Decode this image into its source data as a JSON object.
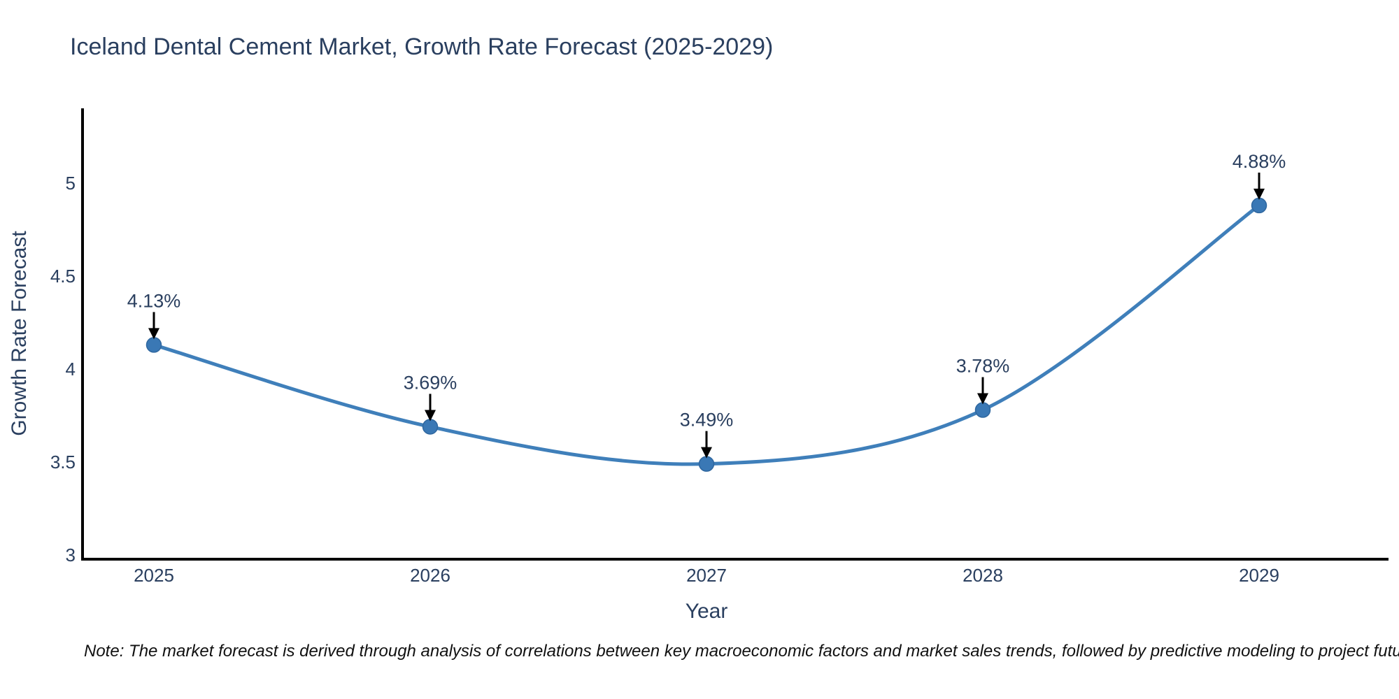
{
  "chart_data": {
    "type": "line",
    "title": "Iceland Dental Cement Market, Growth Rate Forecast (2025-2029)",
    "xlabel": "Year",
    "ylabel": "Growth Rate Forecast",
    "categories": [
      "2025",
      "2026",
      "2027",
      "2028",
      "2029"
    ],
    "series": [
      {
        "name": "Growth Rate Forecast",
        "values": [
          4.13,
          3.69,
          3.49,
          3.78,
          4.88
        ]
      }
    ],
    "point_labels": [
      "4.13%",
      "3.69%",
      "3.49%",
      "3.78%",
      "4.88%"
    ],
    "y_ticks": [
      "3",
      "3.5",
      "4",
      "4.5",
      "5"
    ],
    "y_tick_values": [
      3,
      3.5,
      4,
      4.5,
      5
    ],
    "ylim": [
      3,
      5.43
    ],
    "line_shape": "spline",
    "grid": false,
    "legend_position": "none",
    "colors": {
      "line": "#3f7fba",
      "marker_fill": "#3a78b5",
      "marker_edge": "#2f679f",
      "axis_line": "#000000",
      "chart_text": "#2a3f5f",
      "annotation_arrow": "#000000",
      "note_text": "#111111",
      "background": "#ffffff"
    },
    "note": "Note: The market forecast is derived through analysis of correlations between key macroeconomic factors and market sales trends, followed by predictive modeling to project future sales"
  }
}
